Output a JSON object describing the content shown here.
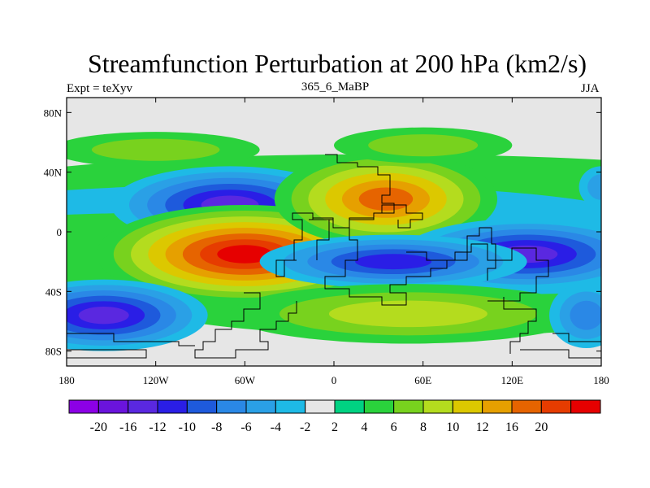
{
  "header": {
    "title": "Streamfunction Perturbation at 200 hPa (km2/s)",
    "left_label": "Expt = teXyv",
    "center_label": "365_6_MaBP",
    "right_label": "JJA"
  },
  "chart_data": {
    "type": "heatmap",
    "title": "Streamfunction Perturbation at 200 hPa (km2/s)",
    "x_axis": {
      "range": [
        -180,
        180
      ],
      "ticks": [
        -180,
        -120,
        -60,
        0,
        60,
        120,
        180
      ],
      "tick_labels": [
        "180",
        "120W",
        "60W",
        "0",
        "60E",
        "120E",
        "180"
      ]
    },
    "y_axis": {
      "range": [
        -90,
        90
      ],
      "ticks": [
        80,
        40,
        0,
        -40,
        -80
      ],
      "tick_labels": [
        "80N",
        "40N",
        "0",
        "40S",
        "80S"
      ]
    },
    "background_color": "#e6e6e6",
    "colorbar": {
      "levels": [
        -20,
        -16,
        -12,
        -10,
        -8,
        -6,
        -4,
        -2,
        2,
        4,
        6,
        8,
        10,
        12,
        16,
        20
      ],
      "labels": [
        "-20",
        "-16",
        "-12",
        "-10",
        "-8",
        "-6",
        "-4",
        "-2",
        "2",
        "4",
        "6",
        "8",
        "10",
        "12",
        "16",
        "20"
      ],
      "colors": [
        "#8c00e6",
        "#6a14dc",
        "#5a28e0",
        "#2a1ee6",
        "#1e5adc",
        "#2a88e6",
        "#2aa0e6",
        "#1ebae6",
        "#e6e6e6",
        "#00d282",
        "#2ad23c",
        "#78d21e",
        "#b4dc1e",
        "#dcc800",
        "#e6a000",
        "#e66400",
        "#e63c00",
        "#e60000"
      ]
    },
    "features": [
      {
        "sign": "negative",
        "lon": -70,
        "lat": 18,
        "peak": -20
      },
      {
        "sign": "positive",
        "lon": -60,
        "lat": -15,
        "peak": 20
      },
      {
        "sign": "negative",
        "lon": -155,
        "lat": -56,
        "peak": -20
      },
      {
        "sign": "positive",
        "lon": 35,
        "lat": 20,
        "peak": 14
      },
      {
        "sign": "negative",
        "lon": 130,
        "lat": -15,
        "peak": -16
      },
      {
        "sign": "negative",
        "lon": 40,
        "lat": -20,
        "peak": -10
      },
      {
        "sign": "positive",
        "lon": 50,
        "lat": -55,
        "peak": 7
      }
    ]
  }
}
